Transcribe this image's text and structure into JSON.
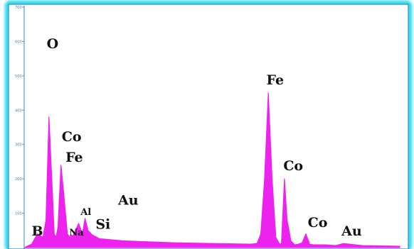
{
  "chart_data": {
    "type": "area",
    "title": "",
    "xlabel": "",
    "ylabel": "",
    "xlim": [
      0,
      10
    ],
    "ylim": [
      0,
      700
    ],
    "y_ticks": [
      "100",
      "200",
      "300",
      "400",
      "500",
      "600",
      "700"
    ],
    "grid": false,
    "legend": "none",
    "colors": {
      "spectrum": "#ee22ee",
      "frame_glow": "#19d7ec",
      "frame_inner": "#2a88c8",
      "background": "#ffffff",
      "tick_text": "#4a7fb0"
    },
    "series": [
      {
        "x": [
          0.0,
          0.2,
          0.35,
          0.5,
          0.58,
          0.66,
          0.8,
          0.85,
          0.9,
          0.98,
          1.05,
          1.15,
          1.2,
          1.3,
          1.45,
          1.55,
          1.62,
          1.7,
          1.8,
          1.9,
          2.0,
          2.2,
          2.6,
          3.0,
          4.0,
          5.0,
          6.0,
          6.2,
          6.3,
          6.4,
          6.5,
          6.6,
          6.7,
          6.8,
          6.85,
          6.93,
          7.0,
          7.1,
          7.2,
          7.3,
          7.4,
          7.5,
          7.6,
          7.7,
          8.0,
          8.3,
          8.5,
          9.0,
          10.0
        ],
        "y": [
          0,
          10,
          40,
          30,
          80,
          380,
          40,
          30,
          60,
          240,
          160,
          40,
          32,
          35,
          70,
          40,
          85,
          50,
          38,
          32,
          26,
          24,
          20,
          18,
          14,
          12,
          10,
          12,
          40,
          200,
          450,
          200,
          30,
          10,
          12,
          200,
          80,
          20,
          8,
          10,
          14,
          40,
          10,
          8,
          8,
          6,
          12,
          6,
          4
        ]
      }
    ],
    "annotations": [
      {
        "text": "O",
        "x": 0.6,
        "y": 580
      },
      {
        "text": "Co",
        "x": 1.0,
        "y": 310
      },
      {
        "text": "Fe",
        "x": 1.1,
        "y": 250
      },
      {
        "text": "B",
        "x": 0.2,
        "y": 35
      },
      {
        "text": "Na",
        "x": 1.2,
        "y": 35
      },
      {
        "text": "Al",
        "x": 1.5,
        "y": 95
      },
      {
        "text": "Si",
        "x": 1.9,
        "y": 55
      },
      {
        "text": "Au",
        "x": 2.5,
        "y": 125
      },
      {
        "text": "Fe",
        "x": 6.45,
        "y": 475
      },
      {
        "text": "Co",
        "x": 6.9,
        "y": 225
      },
      {
        "text": "Co",
        "x": 7.55,
        "y": 60
      },
      {
        "text": "Au",
        "x": 8.45,
        "y": 35
      }
    ]
  }
}
